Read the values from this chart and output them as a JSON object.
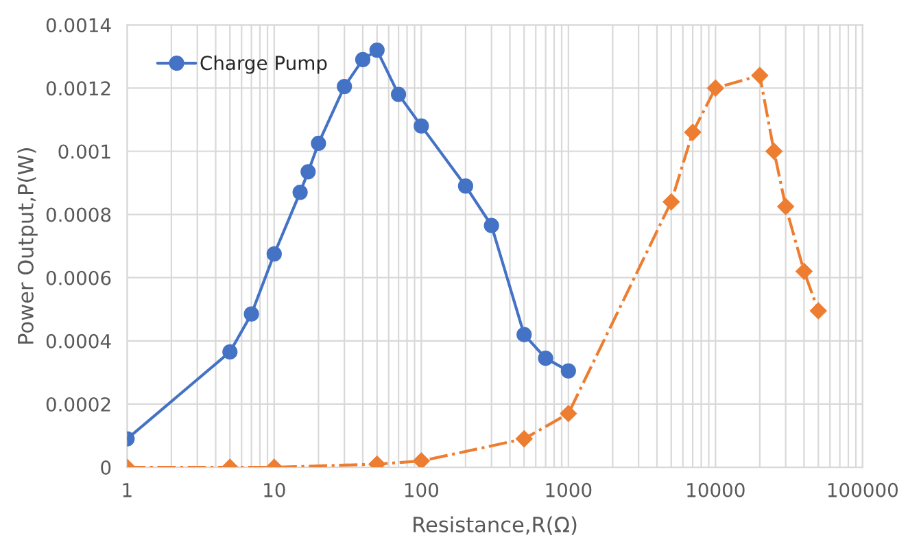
{
  "chart_data": {
    "type": "line",
    "xlabel": "Resistance,R(Ω)",
    "ylabel": "Power Output,P(W)",
    "log": "x",
    "xlim": [
      1,
      100000
    ],
    "xticks": [
      1,
      10,
      100,
      1000,
      10000,
      100000
    ],
    "ylim": [
      0,
      0.0014
    ],
    "yticks": [
      {
        "value": 0,
        "label": "0"
      },
      {
        "value": 0.0002,
        "label": "0.0002"
      },
      {
        "value": 0.0004,
        "label": "0.0004"
      },
      {
        "value": 0.0006,
        "label": "0.0006"
      },
      {
        "value": 0.0008,
        "label": "0.0008"
      },
      {
        "value": 0.001,
        "label": "0.001"
      },
      {
        "value": 0.0012,
        "label": "0.0012"
      },
      {
        "value": 0.0014,
        "label": "0.0014"
      }
    ],
    "grid": true,
    "legend": "top left",
    "series": [
      {
        "name": "Charge Pump",
        "color": "#4472c4",
        "marker": "circle",
        "line_style": "solid",
        "x": [
          1,
          5,
          7,
          10,
          15,
          17,
          20,
          30,
          40,
          50,
          70,
          100,
          200,
          300,
          500,
          700,
          1000
        ],
        "values": [
          9e-05,
          0.000365,
          0.000485,
          0.000675,
          0.00087,
          0.000935,
          0.001025,
          0.001205,
          0.00129,
          0.00132,
          0.00118,
          0.00108,
          0.00089,
          0.000765,
          0.00042,
          0.000345,
          0.000305
        ]
      },
      {
        "color": "#ed7d31",
        "marker": "diamond",
        "line_style": "dashed",
        "x": [
          1,
          5,
          10,
          50,
          100,
          500,
          1000,
          5000,
          7000,
          10000,
          20000,
          25000,
          30000,
          40000,
          50000
        ],
        "values": [
          0,
          0,
          0,
          1e-05,
          2e-05,
          9e-05,
          0.00017,
          0.00084,
          0.00106,
          0.0012,
          0.00124,
          0.001,
          0.000825,
          0.00062,
          0.000495
        ]
      }
    ]
  }
}
